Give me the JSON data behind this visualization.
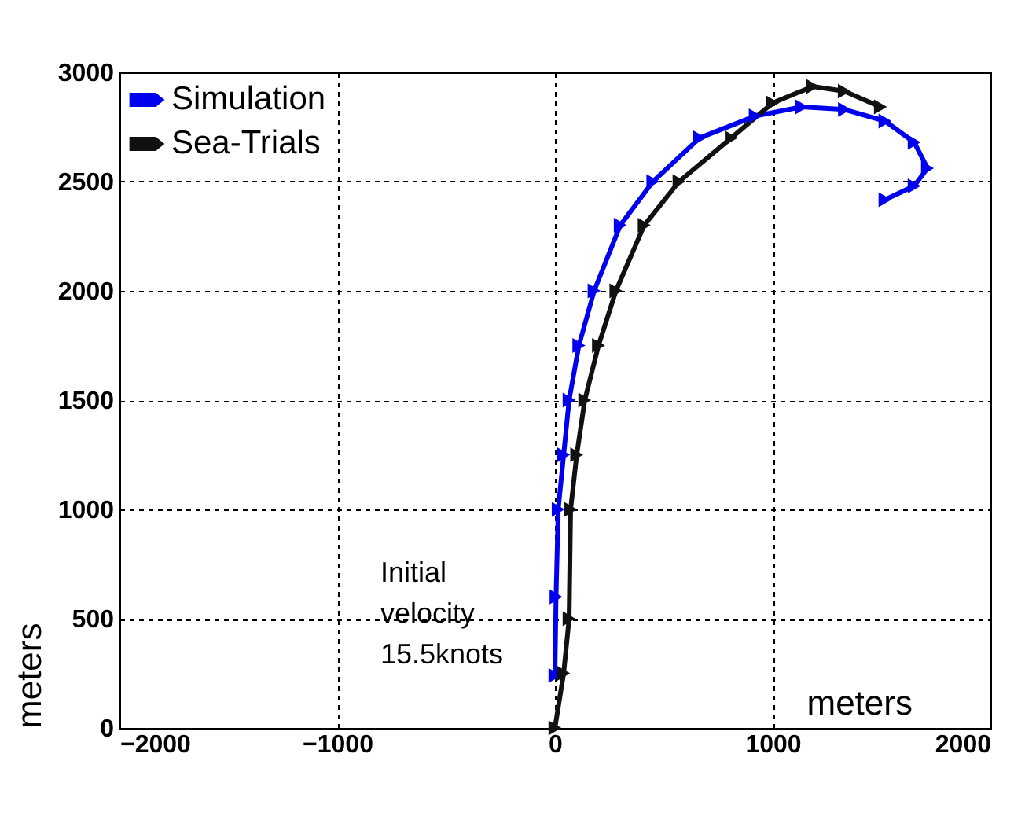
{
  "chart_data": {
    "type": "line",
    "xlabel": "meters",
    "ylabel": "meters",
    "xlim": [
      -2000,
      2000
    ],
    "xticks": [
      -2000,
      -1000,
      0,
      1000,
      2000
    ],
    "ylim": [
      0,
      3000
    ],
    "yticks": [
      0,
      500,
      1000,
      1500,
      2000,
      2500,
      3000
    ],
    "grid": true,
    "legend": "top left",
    "marker": "triangle",
    "annotations": [
      "Initial\nvelocity\n15.5knots"
    ],
    "series": [
      {
        "name": "Simulation",
        "color": "#0000ee",
        "x": [
          0,
          5,
          15,
          40,
          65,
          110,
          180,
          300,
          450,
          665,
          920,
          1134,
          1330,
          1516,
          1650,
          1711,
          1650,
          1516
        ],
        "values": [
          240,
          600,
          1000,
          1250,
          1500,
          1750,
          2000,
          2300,
          2500,
          2700,
          2800,
          2842,
          2830,
          2777,
          2680,
          2561,
          2480,
          2417
        ]
      },
      {
        "name": "Sea-Trials",
        "color": "#111111",
        "x": [
          0,
          40,
          65,
          72,
          100,
          137,
          200,
          280,
          410,
          570,
          810,
          1000,
          1184,
          1329,
          1495
        ],
        "values": [
          0,
          250,
          500,
          1000,
          1250,
          1500,
          1750,
          2000,
          2300,
          2500,
          2700,
          2860,
          2935,
          2914,
          2842
        ]
      }
    ]
  }
}
